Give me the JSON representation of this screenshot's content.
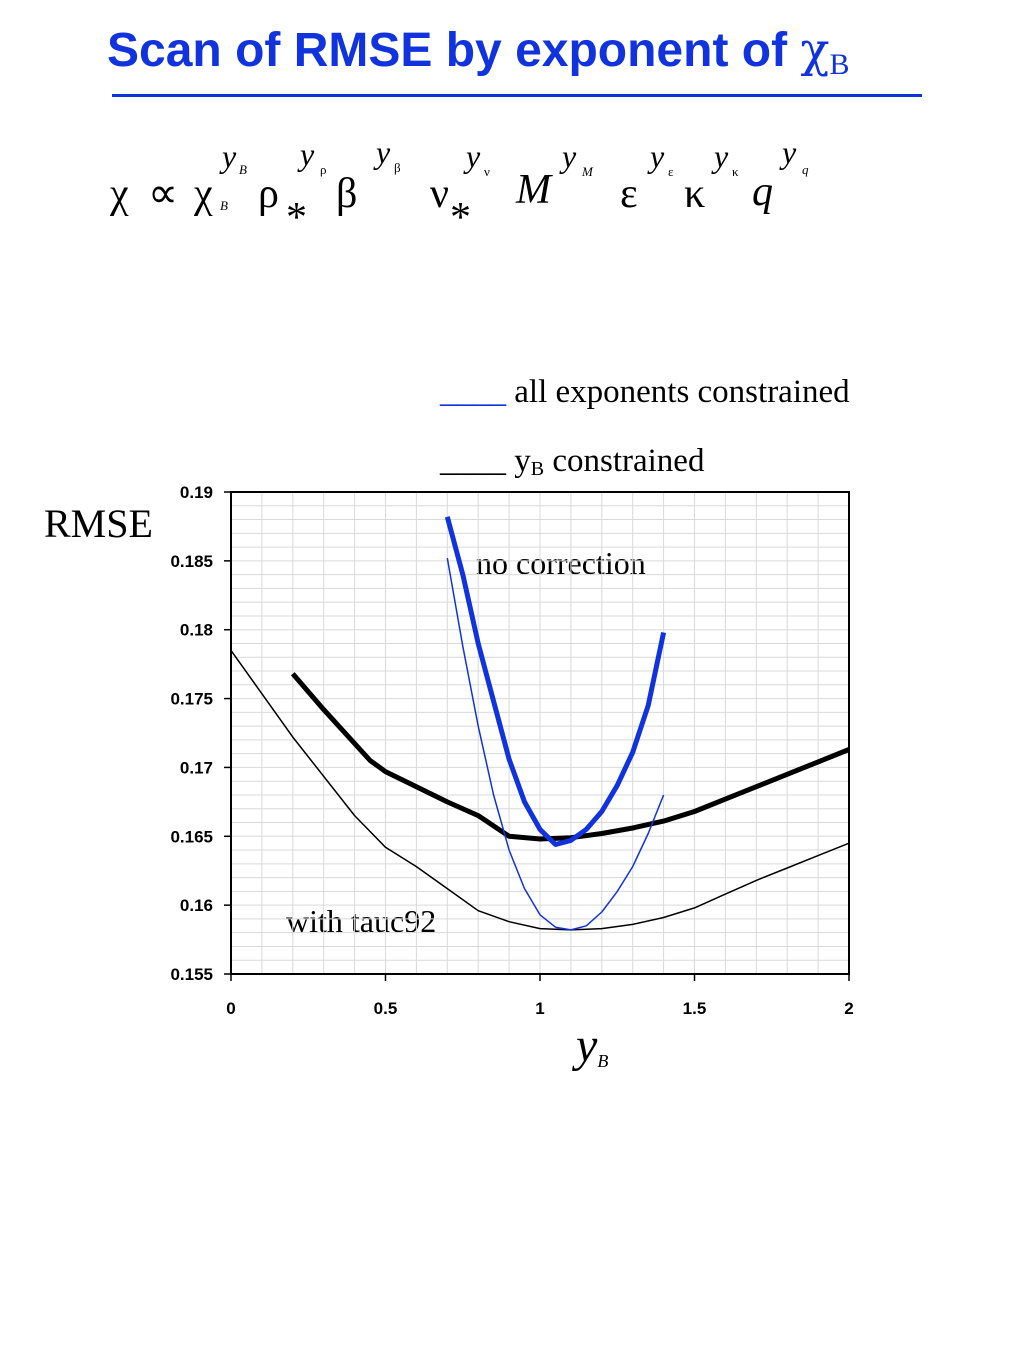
{
  "slide": {
    "title": "Scan of RMSE by exponent of ",
    "title_symbol": "χ",
    "title_subscript": "B",
    "accent_color": "#1133dd"
  },
  "formula": {
    "chi": "χ",
    "propto": "∝",
    "chiB": "χ",
    "rho": "ρ",
    "star": "*",
    "beta": "β",
    "nu": "ν",
    "M": "M",
    "eps": "ε",
    "kappa": "κ",
    "q": "q",
    "y": "y",
    "sub_B": "B",
    "sub_rho": "ρ",
    "sub_beta": "β",
    "sub_nu": "ν",
    "sub_M": "M",
    "sub_eps": "ε",
    "sub_kappa": "κ",
    "sub_q": "q"
  },
  "legend": {
    "line_sample": "____",
    "entry1": "all exponents constrained",
    "entry2_prefix": "y",
    "entry2_sub": "B",
    "entry2_suffix": "constrained"
  },
  "annotations": {
    "no_correction": "no correction",
    "with_tauc92": "with tauc92"
  },
  "chart_data": {
    "type": "line",
    "ylabel": "RMSE",
    "xlabel": "y",
    "xlabel_sub": "B",
    "xlim": [
      0,
      2
    ],
    "ylim": [
      0.155,
      0.19
    ],
    "x_ticks": [
      "0",
      "0.5",
      "1",
      "1.5",
      "2"
    ],
    "y_ticks": [
      "0.19",
      "0.185",
      "0.18",
      "0.175",
      "0.17",
      "0.165",
      "0.16",
      "0.155"
    ],
    "grid": true,
    "series": [
      {
        "group": "no correction",
        "color": "#000000",
        "weight": "thick",
        "x": [
          0.2,
          0.3,
          0.45,
          0.5,
          0.6,
          0.7,
          0.8,
          0.9,
          1.0,
          1.1,
          1.2,
          1.3,
          1.4,
          1.5,
          1.6,
          1.7,
          1.8,
          1.9,
          2.0
        ],
        "y": [
          0.1768,
          0.1742,
          0.1705,
          0.1697,
          0.1686,
          0.1675,
          0.1665,
          0.165,
          0.1648,
          0.1649,
          0.1652,
          0.1656,
          0.1661,
          0.1668,
          0.1677,
          0.1686,
          0.1695,
          0.1704,
          0.1713
        ]
      },
      {
        "group": "no correction",
        "color": "#1133dd",
        "weight": "thick",
        "x": [
          0.7,
          0.75,
          0.8,
          0.85,
          0.9,
          0.95,
          1.0,
          1.05,
          1.1,
          1.15,
          1.2,
          1.25,
          1.3,
          1.35,
          1.4
        ],
        "y": [
          0.1882,
          0.184,
          0.179,
          0.1748,
          0.1706,
          0.1675,
          0.1655,
          0.1644,
          0.1647,
          0.1655,
          0.1668,
          0.1687,
          0.1711,
          0.1745,
          0.1798
        ]
      },
      {
        "group": "with tauc92",
        "color": "#000000",
        "weight": "thin",
        "x": [
          0.0,
          0.2,
          0.4,
          0.5,
          0.6,
          0.7,
          0.8,
          0.9,
          1.0,
          1.1,
          1.2,
          1.3,
          1.4,
          1.5,
          1.6,
          1.7,
          1.8,
          1.9,
          2.0
        ],
        "y": [
          0.1785,
          0.1722,
          0.1665,
          0.1642,
          0.1628,
          0.1612,
          0.1596,
          0.1588,
          0.1583,
          0.1582,
          0.1583,
          0.1586,
          0.1591,
          0.1598,
          0.1608,
          0.1618,
          0.1627,
          0.1636,
          0.1645
        ]
      },
      {
        "group": "with tauc92",
        "color": "#1133dd",
        "weight": "thin",
        "x": [
          0.7,
          0.75,
          0.8,
          0.85,
          0.9,
          0.95,
          1.0,
          1.05,
          1.1,
          1.15,
          1.2,
          1.25,
          1.3,
          1.35,
          1.4
        ],
        "y": [
          0.1852,
          0.1788,
          0.173,
          0.168,
          0.164,
          0.1612,
          0.1593,
          0.1584,
          0.1582,
          0.1585,
          0.1595,
          0.161,
          0.1628,
          0.1652,
          0.168
        ]
      }
    ]
  }
}
